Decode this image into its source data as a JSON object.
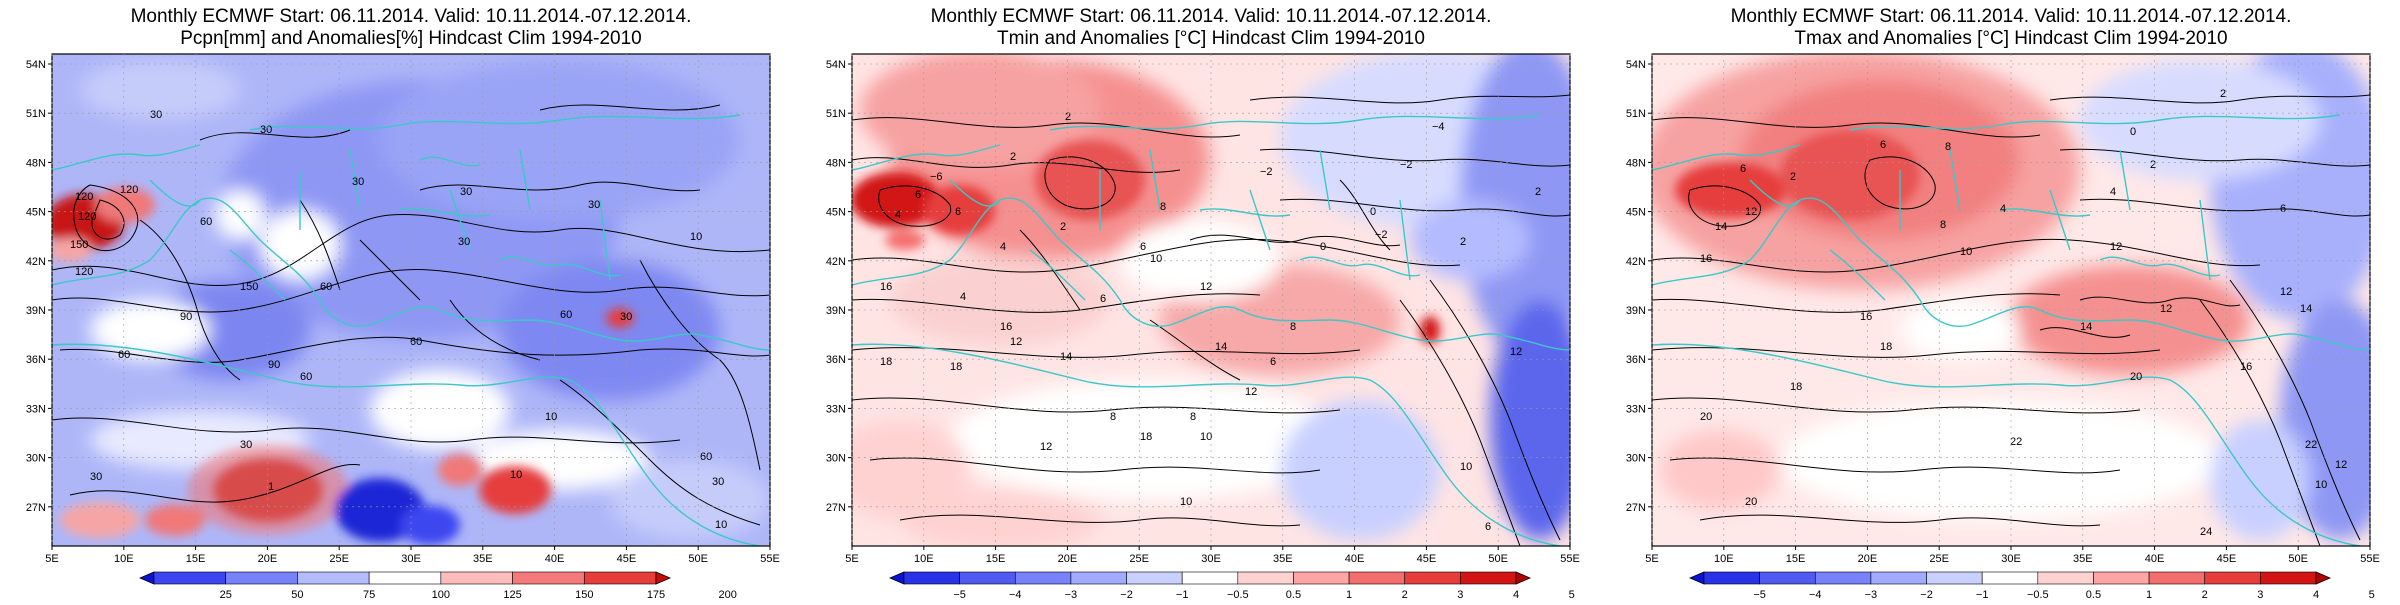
{
  "panels": [
    {
      "id": "pcpn",
      "title_line1": "Monthly ECMWF Start: 06.11.2014. Valid: 10.11.2014.-07.12.2014.",
      "title_line2": "Pcpn[mm] and Anomalies[%] Hindcast Clim 1994-2010",
      "colorbar_labels": [
        "25",
        "50",
        "75",
        "100",
        "125",
        "150",
        "175",
        "200"
      ],
      "colorbar_colors": [
        "#0a14d2",
        "#3c46f0",
        "#7882fa",
        "#b4bcff",
        "#ffffff",
        "#ffbcbc",
        "#f5787a",
        "#e63c3c",
        "#c80a0a"
      ],
      "contour_labels": [
        "30",
        "30",
        "30",
        "30",
        "120",
        "120",
        "120",
        "150",
        "150",
        "120",
        "60",
        "60",
        "60",
        "30",
        "60",
        "60",
        "90",
        "90",
        "30",
        "10",
        "60",
        "30",
        "30",
        "10",
        "30",
        "30",
        "10",
        "60",
        "1",
        "10"
      ]
    },
    {
      "id": "tmin",
      "title_line1": "Monthly ECMWF Start: 06.11.2014. Valid: 10.11.2014.-07.12.2014.",
      "title_line2": "Tmin and Anomalies [°C] Hindcast Clim 1994-2010",
      "colorbar_labels": [
        "−5",
        "−4",
        "−3",
        "−2",
        "−1",
        "−0.5",
        "0.5",
        "1",
        "2",
        "3",
        "4",
        "5"
      ],
      "colorbar_colors": [
        "#0a14d2",
        "#2832e6",
        "#505af0",
        "#7882fa",
        "#a0aaff",
        "#c8d0ff",
        "#ffffff",
        "#ffd2d2",
        "#ffa5a5",
        "#f56e6e",
        "#e63c3c",
        "#d21414",
        "#b40000"
      ],
      "contour_labels": [
        "2",
        "2",
        "−4",
        "−2",
        "0",
        "2",
        "−2",
        "0",
        "−2",
        "2",
        "−6",
        "6",
        "4",
        "6",
        "2",
        "10",
        "8",
        "6",
        "12",
        "16",
        "18",
        "4",
        "16",
        "12",
        "14",
        "8",
        "8",
        "12",
        "14",
        "18",
        "12",
        "10",
        "6",
        "8",
        "10",
        "6",
        "12",
        "18",
        "10",
        "4",
        "6"
      ]
    },
    {
      "id": "tmax",
      "title_line1": "Monthly ECMWF Start: 06.11.2014. Valid: 10.11.2014.-07.12.2014.",
      "title_line2": "Tmax and Anomalies [°C] Hindcast Clim 1994-2010",
      "colorbar_labels": [
        "−5",
        "−4",
        "−3",
        "−2",
        "−1",
        "−0.5",
        "0.5",
        "1",
        "2",
        "3",
        "4",
        "5"
      ],
      "colorbar_colors": [
        "#0a14d2",
        "#2832e6",
        "#505af0",
        "#7882fa",
        "#a0aaff",
        "#c8d0ff",
        "#ffffff",
        "#ffd2d2",
        "#ffa5a5",
        "#f56e6e",
        "#e63c3c",
        "#d21414",
        "#b40000"
      ],
      "contour_labels": [
        "2",
        "6",
        "8",
        "0",
        "2",
        "4",
        "6",
        "4",
        "6",
        "2",
        "14",
        "16",
        "12",
        "12",
        "8",
        "10",
        "12",
        "14",
        "12",
        "16",
        "14",
        "18",
        "16",
        "18",
        "20",
        "22",
        "22",
        "20",
        "12",
        "10",
        "20",
        "24"
      ]
    }
  ],
  "map_axes": {
    "lat_labels": [
      "54N",
      "51N",
      "48N",
      "45N",
      "42N",
      "39N",
      "36N",
      "33N",
      "30N",
      "27N"
    ],
    "lon_labels": [
      "5E",
      "10E",
      "15E",
      "20E",
      "25E",
      "30E",
      "35E",
      "40E",
      "45E",
      "50E",
      "55E"
    ]
  }
}
